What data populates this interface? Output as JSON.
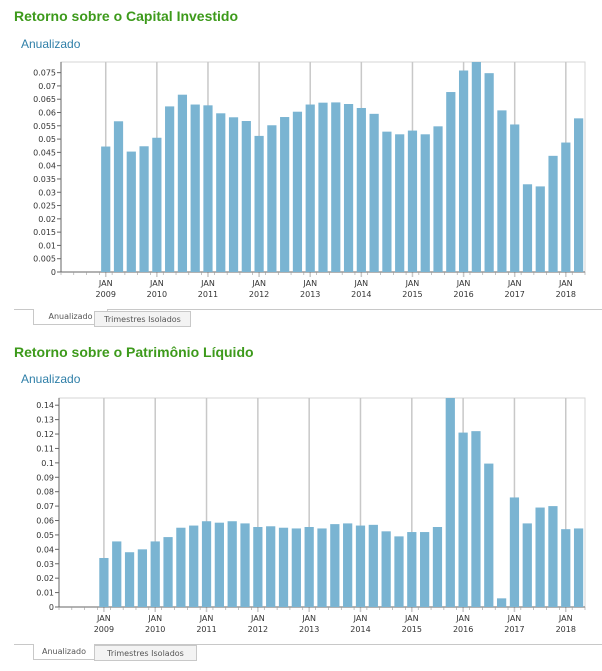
{
  "chart_data": [
    {
      "type": "bar",
      "title": "Retorno sobre o Capital Investido",
      "subtitle": "Anualizado",
      "ylim": [
        0,
        0.079
      ],
      "y_ticks": [
        "0",
        "0.005",
        "0.01",
        "0.015",
        "0.02",
        "0.025",
        "0.03",
        "0.035",
        "0.04",
        "0.045",
        "0.05",
        "0.055",
        "0.06",
        "0.065",
        "0.07",
        "0.075"
      ],
      "y_tick_values": [
        0,
        0.005,
        0.01,
        0.015,
        0.02,
        0.025,
        0.03,
        0.035,
        0.04,
        0.045,
        0.05,
        0.055,
        0.06,
        0.065,
        0.07,
        0.075
      ],
      "x_labels": [
        {
          "slot": 3,
          "month": "JAN",
          "year": "2009"
        },
        {
          "slot": 7,
          "month": "JAN",
          "year": "2010"
        },
        {
          "slot": 11,
          "month": "JAN",
          "year": "2011"
        },
        {
          "slot": 15,
          "month": "JAN",
          "year": "2012"
        },
        {
          "slot": 19,
          "month": "JAN",
          "year": "2013"
        },
        {
          "slot": 23,
          "month": "JAN",
          "year": "2014"
        },
        {
          "slot": 27,
          "month": "JAN",
          "year": "2015"
        },
        {
          "slot": 31,
          "month": "JAN",
          "year": "2016"
        },
        {
          "slot": 35,
          "month": "JAN",
          "year": "2017"
        },
        {
          "slot": 39,
          "month": "JAN",
          "year": "2018"
        }
      ],
      "values": [
        null,
        null,
        null,
        0.0472,
        0.0567,
        0.0453,
        0.0473,
        0.0505,
        0.0623,
        0.0667,
        0.063,
        0.0627,
        0.0597,
        0.0582,
        0.0568,
        0.0512,
        0.0552,
        0.0583,
        0.0603,
        0.063,
        0.0637,
        0.0638,
        0.0632,
        0.0617,
        0.0595,
        0.0528,
        0.0518,
        0.0532,
        0.0518,
        0.0548,
        0.0677,
        0.0758,
        0.0795,
        0.0748,
        0.0608,
        0.0555,
        0.033,
        0.0322,
        0.0437,
        0.0487,
        0.0578
      ],
      "color": "#7ab4d2",
      "tabs": [
        "Anualizado",
        "Trimestres Isolados"
      ]
    },
    {
      "type": "bar",
      "title": "Retorno sobre o Patrimônio Líquido",
      "subtitle": "Anualizado",
      "ylim": [
        0,
        0.145
      ],
      "y_ticks": [
        "0",
        "0.01",
        "0.02",
        "0.03",
        "0.04",
        "0.05",
        "0.06",
        "0.07",
        "0.08",
        "0.09",
        "0.1",
        "0.11",
        "0.12",
        "0.13",
        "0.14"
      ],
      "y_tick_values": [
        0,
        0.01,
        0.02,
        0.03,
        0.04,
        0.05,
        0.06,
        0.07,
        0.08,
        0.09,
        0.1,
        0.11,
        0.12,
        0.13,
        0.14
      ],
      "x_labels": [
        {
          "slot": 3,
          "month": "JAN",
          "year": "2009"
        },
        {
          "slot": 7,
          "month": "JAN",
          "year": "2010"
        },
        {
          "slot": 11,
          "month": "JAN",
          "year": "2011"
        },
        {
          "slot": 15,
          "month": "JAN",
          "year": "2012"
        },
        {
          "slot": 19,
          "month": "JAN",
          "year": "2013"
        },
        {
          "slot": 23,
          "month": "JAN",
          "year": "2014"
        },
        {
          "slot": 27,
          "month": "JAN",
          "year": "2015"
        },
        {
          "slot": 31,
          "month": "JAN",
          "year": "2016"
        },
        {
          "slot": 35,
          "month": "JAN",
          "year": "2017"
        },
        {
          "slot": 39,
          "month": "JAN",
          "year": "2018"
        }
      ],
      "values": [
        null,
        null,
        null,
        0.034,
        0.0455,
        0.038,
        0.04,
        0.0455,
        0.0485,
        0.055,
        0.0565,
        0.0595,
        0.0585,
        0.0595,
        0.058,
        0.0555,
        0.056,
        0.055,
        0.0545,
        0.0555,
        0.0545,
        0.0575,
        0.058,
        0.0565,
        0.057,
        0.0525,
        0.049,
        0.052,
        0.052,
        0.0555,
        0.145,
        0.121,
        0.122,
        0.0995,
        0.006,
        0.076,
        0.058,
        0.069,
        0.07,
        0.054,
        0.0545
      ],
      "color": "#7ab4d2",
      "tabs": [
        "Anualizado",
        "Trimestres Isolados"
      ]
    }
  ]
}
